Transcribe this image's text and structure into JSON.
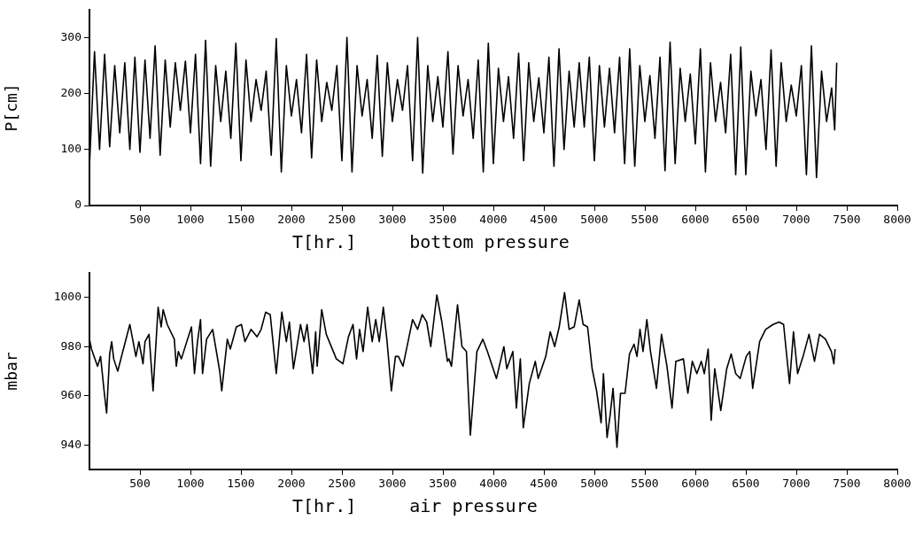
{
  "chart_data": [
    {
      "type": "line",
      "title": "bottom pressure",
      "xlabel": "T[hr.]",
      "ylabel": "P[cm]",
      "xlim": [
        0,
        8000
      ],
      "ylim": [
        0,
        350
      ],
      "xticks": [
        500,
        1000,
        1500,
        2000,
        2500,
        3000,
        3500,
        4000,
        4500,
        5000,
        5500,
        6000,
        6500,
        7000,
        7500,
        8000
      ],
      "yticks": [
        0,
        100,
        200,
        300
      ],
      "grid": false,
      "legend": false,
      "marker": "none",
      "line_style": "solid",
      "x": [
        0,
        50,
        100,
        150,
        200,
        250,
        300,
        350,
        400,
        450,
        500,
        550,
        600,
        650,
        700,
        750,
        800,
        850,
        900,
        950,
        1000,
        1050,
        1100,
        1150,
        1200,
        1250,
        1300,
        1350,
        1400,
        1450,
        1500,
        1550,
        1600,
        1650,
        1700,
        1750,
        1800,
        1850,
        1900,
        1950,
        2000,
        2050,
        2100,
        2150,
        2200,
        2250,
        2300,
        2350,
        2400,
        2450,
        2500,
        2550,
        2600,
        2650,
        2700,
        2750,
        2800,
        2850,
        2900,
        2950,
        3000,
        3050,
        3100,
        3150,
        3200,
        3250,
        3300,
        3350,
        3400,
        3450,
        3500,
        3550,
        3600,
        3650,
        3700,
        3750,
        3800,
        3850,
        3900,
        3950,
        4000,
        4050,
        4100,
        4150,
        4200,
        4250,
        4300,
        4350,
        4400,
        4450,
        4500,
        4550,
        4600,
        4650,
        4700,
        4750,
        4800,
        4850,
        4900,
        4950,
        5000,
        5050,
        5100,
        5150,
        5200,
        5250,
        5300,
        5350,
        5400,
        5450,
        5500,
        5550,
        5600,
        5650,
        5700,
        5750,
        5800,
        5850,
        5900,
        5950,
        6000,
        6050,
        6100,
        6150,
        6200,
        6250,
        6300,
        6350,
        6400,
        6450,
        6500,
        6550,
        6600,
        6650,
        6700,
        6750,
        6800,
        6850,
        6900,
        6950,
        7000,
        7050,
        7100,
        7150,
        7200,
        7250,
        7300,
        7350,
        7380,
        7400
      ],
      "series": [
        {
          "color": "#000000",
          "values": [
            70,
            275,
            100,
            270,
            105,
            250,
            130,
            255,
            100,
            265,
            95,
            260,
            120,
            285,
            90,
            260,
            140,
            255,
            170,
            258,
            130,
            270,
            75,
            295,
            70,
            250,
            150,
            240,
            120,
            290,
            80,
            260,
            150,
            225,
            170,
            240,
            90,
            298,
            60,
            250,
            160,
            225,
            130,
            270,
            85,
            260,
            150,
            220,
            170,
            250,
            80,
            300,
            60,
            250,
            160,
            225,
            120,
            268,
            88,
            255,
            150,
            225,
            170,
            250,
            80,
            300,
            58,
            250,
            150,
            230,
            140,
            275,
            92,
            250,
            160,
            225,
            120,
            260,
            60,
            290,
            75,
            245,
            150,
            230,
            120,
            272,
            80,
            255,
            150,
            228,
            130,
            265,
            70,
            280,
            100,
            240,
            140,
            255,
            140,
            265,
            80,
            250,
            140,
            245,
            130,
            265,
            75,
            280,
            70,
            250,
            150,
            232,
            120,
            265,
            62,
            292,
            75,
            245,
            150,
            235,
            110,
            280,
            60,
            255,
            150,
            220,
            130,
            270,
            55,
            283,
            55,
            240,
            160,
            225,
            100,
            278,
            70,
            255,
            150,
            215,
            160,
            250,
            55,
            285,
            50,
            240,
            150,
            210,
            135,
            255
          ]
        }
      ]
    },
    {
      "type": "line",
      "title": "air pressure",
      "xlabel": "T[hr.]",
      "ylabel": "mbar",
      "xlim": [
        0,
        8000
      ],
      "ylim": [
        930,
        1010
      ],
      "xticks": [
        500,
        1000,
        1500,
        2000,
        2500,
        3000,
        3500,
        4000,
        4500,
        5000,
        5500,
        6000,
        6500,
        7000,
        7500,
        8000
      ],
      "yticks": [
        940,
        960,
        980,
        1000
      ],
      "grid": false,
      "legend": false,
      "marker": "none",
      "line_style": "solid",
      "x": [
        0,
        20,
        80,
        110,
        150,
        170,
        200,
        220,
        240,
        280,
        330,
        400,
        460,
        490,
        530,
        550,
        590,
        630,
        680,
        710,
        730,
        770,
        840,
        860,
        880,
        910,
        1010,
        1040,
        1070,
        1100,
        1120,
        1160,
        1220,
        1290,
        1310,
        1365,
        1395,
        1455,
        1505,
        1540,
        1600,
        1660,
        1700,
        1745,
        1790,
        1850,
        1905,
        1950,
        1980,
        2020,
        2090,
        2125,
        2155,
        2210,
        2240,
        2255,
        2300,
        2345,
        2445,
        2510,
        2565,
        2610,
        2645,
        2675,
        2710,
        2755,
        2800,
        2835,
        2870,
        2910,
        2945,
        2990,
        3030,
        3060,
        3105,
        3165,
        3200,
        3250,
        3295,
        3340,
        3380,
        3440,
        3490,
        3545,
        3560,
        3585,
        3645,
        3689,
        3733,
        3772,
        3837,
        3896,
        3941,
        4030,
        4104,
        4133,
        4193,
        4228,
        4267,
        4296,
        4356,
        4415,
        4444,
        4519,
        4563,
        4607,
        4652,
        4705,
        4750,
        4800,
        4850,
        4889,
        4933,
        4978,
        5022,
        5067,
        5090,
        5126,
        5156,
        5185,
        5224,
        5259,
        5304,
        5348,
        5393,
        5422,
        5452,
        5482,
        5520,
        5556,
        5615,
        5665,
        5719,
        5769,
        5807,
        5882,
        5926,
        5970,
        6015,
        6059,
        6089,
        6127,
        6157,
        6192,
        6252,
        6311,
        6355,
        6400,
        6444,
        6504,
        6539,
        6568,
        6637,
        6696,
        6770,
        6830,
        6874,
        6933,
        6972,
        7013,
        7067,
        7126,
        7180,
        7230,
        7289,
        7348,
        7372,
        7384
      ],
      "series": [
        {
          "color": "#000000",
          "values": [
            983,
            979,
            972,
            976,
            960,
            953,
            977,
            982,
            975,
            970,
            978,
            989,
            976,
            982,
            973,
            982,
            985,
            962,
            996,
            988,
            995,
            989,
            983,
            972,
            978,
            975,
            988,
            969,
            982,
            991,
            969,
            983,
            987,
            970,
            962,
            983,
            979,
            988,
            989,
            982,
            987,
            984,
            987,
            994,
            993,
            969,
            994,
            982,
            990,
            971,
            989,
            982,
            989,
            969,
            986,
            972,
            995,
            985,
            975,
            973,
            984,
            989,
            975,
            987,
            978,
            996,
            982,
            991,
            982,
            996,
            983,
            962,
            976,
            976,
            972,
            984,
            991,
            987,
            993,
            990,
            980,
            1001,
            990,
            974,
            975,
            972,
            997,
            980,
            978,
            944,
            978,
            983,
            978,
            967,
            980,
            971,
            978,
            955,
            975,
            947,
            965,
            974,
            967,
            976,
            986,
            980,
            988,
            1002,
            987,
            988,
            999,
            989,
            988,
            971,
            962,
            949,
            969,
            943,
            952,
            963,
            939,
            961,
            961,
            977,
            981,
            976,
            987,
            978,
            991,
            978,
            963,
            985,
            972,
            955,
            974,
            975,
            961,
            974,
            969,
            974,
            969,
            979,
            950,
            971,
            954,
            971,
            977,
            969,
            967,
            976,
            978,
            963,
            982,
            987,
            989,
            990,
            989,
            965,
            986,
            969,
            976,
            985,
            974,
            985,
            983,
            978,
            973,
            979
          ]
        }
      ]
    }
  ]
}
